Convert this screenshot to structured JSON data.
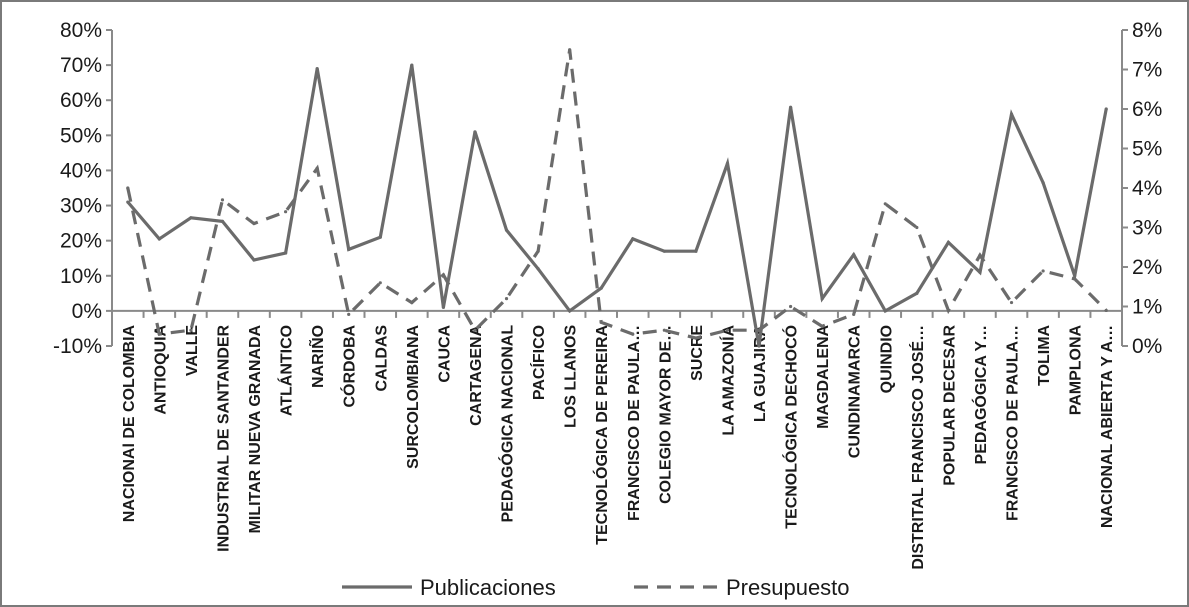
{
  "chart_data": {
    "type": "line",
    "categories": [
      "NACIONAl DE COLOMBIA",
      "ANTIOQUIA",
      "VALLE",
      "INDUSTRIAL DE SANTANDER",
      "MILITAR NUEVA GRANADA",
      "ATLÁNTICO",
      "NARIÑO",
      "CÓRDOBA",
      "CALDAS",
      "SURCOLOMBIANA",
      "CAUCA",
      "CARTAGENA",
      "PEDAGÓGICA NACIONAL",
      "PACÍFICO",
      "LOS LLANOS",
      "TECNOLÓGICA DE PEREIRA",
      "FRANCISCO DE PAULA…",
      "COLEGIO MAYOR DE…",
      "SUCRE",
      "LA AMAZONÍA",
      "LA GUAJIRA",
      "TECNOLÓGICA DECHOCÓ",
      "MAGDALENA",
      "CUNDINAMARCA",
      "QUINDIO",
      "DISTRITAL FRANCISCO JOSÉ…",
      "POPULAR DECESAR",
      "PEDAGÓGICA Y…",
      "FRANCISCO DE PAULA…",
      "TOLIMA",
      "PAMPLONA",
      "NACIONAL ABIERTA Y A…"
    ],
    "series": [
      {
        "name": "Publicaciones",
        "axis": "left",
        "style": "solid",
        "values": [
          31,
          20.5,
          26.5,
          25.5,
          14.5,
          16.5,
          69,
          17.5,
          21,
          70,
          1,
          51,
          23,
          12,
          0,
          6.5,
          20.5,
          17,
          17,
          42,
          -10,
          58,
          3.5,
          16,
          0,
          5,
          19.5,
          11,
          56,
          36.5,
          10,
          57.5
        ]
      },
      {
        "name": "Presupuesto",
        "axis": "right",
        "style": "dashed",
        "values": [
          4.0,
          0.3,
          0.4,
          3.7,
          3.1,
          3.4,
          4.5,
          0.8,
          1.6,
          1.1,
          1.8,
          0.4,
          1.2,
          2.4,
          7.5,
          0.6,
          0.3,
          0.4,
          0.2,
          0.4,
          0.4,
          1.0,
          0.5,
          0.8,
          3.6,
          3.0,
          0.9,
          2.3,
          1.1,
          1.9,
          1.7,
          0.9
        ]
      }
    ],
    "y_left": {
      "ylim": [
        -10,
        80
      ],
      "ticks": [
        -10,
        0,
        10,
        20,
        30,
        40,
        50,
        60,
        70,
        80
      ],
      "tick_labels": [
        "-10%",
        "0%",
        "10%",
        "20%",
        "30%",
        "40%",
        "50%",
        "60%",
        "70%",
        "80%"
      ]
    },
    "y_right": {
      "ylim": [
        0,
        8
      ],
      "ticks": [
        0,
        1,
        2,
        3,
        4,
        5,
        6,
        7,
        8
      ],
      "tick_labels": [
        "0%",
        "1%",
        "2%",
        "3%",
        "4%",
        "5%",
        "6%",
        "7%",
        "8%"
      ]
    },
    "grid": false,
    "legend_position": "bottom",
    "colors": {
      "Publicaciones": "#6b6b6b",
      "Presupuesto": "#6b6b6b",
      "axis": "#8a8a8a"
    }
  }
}
